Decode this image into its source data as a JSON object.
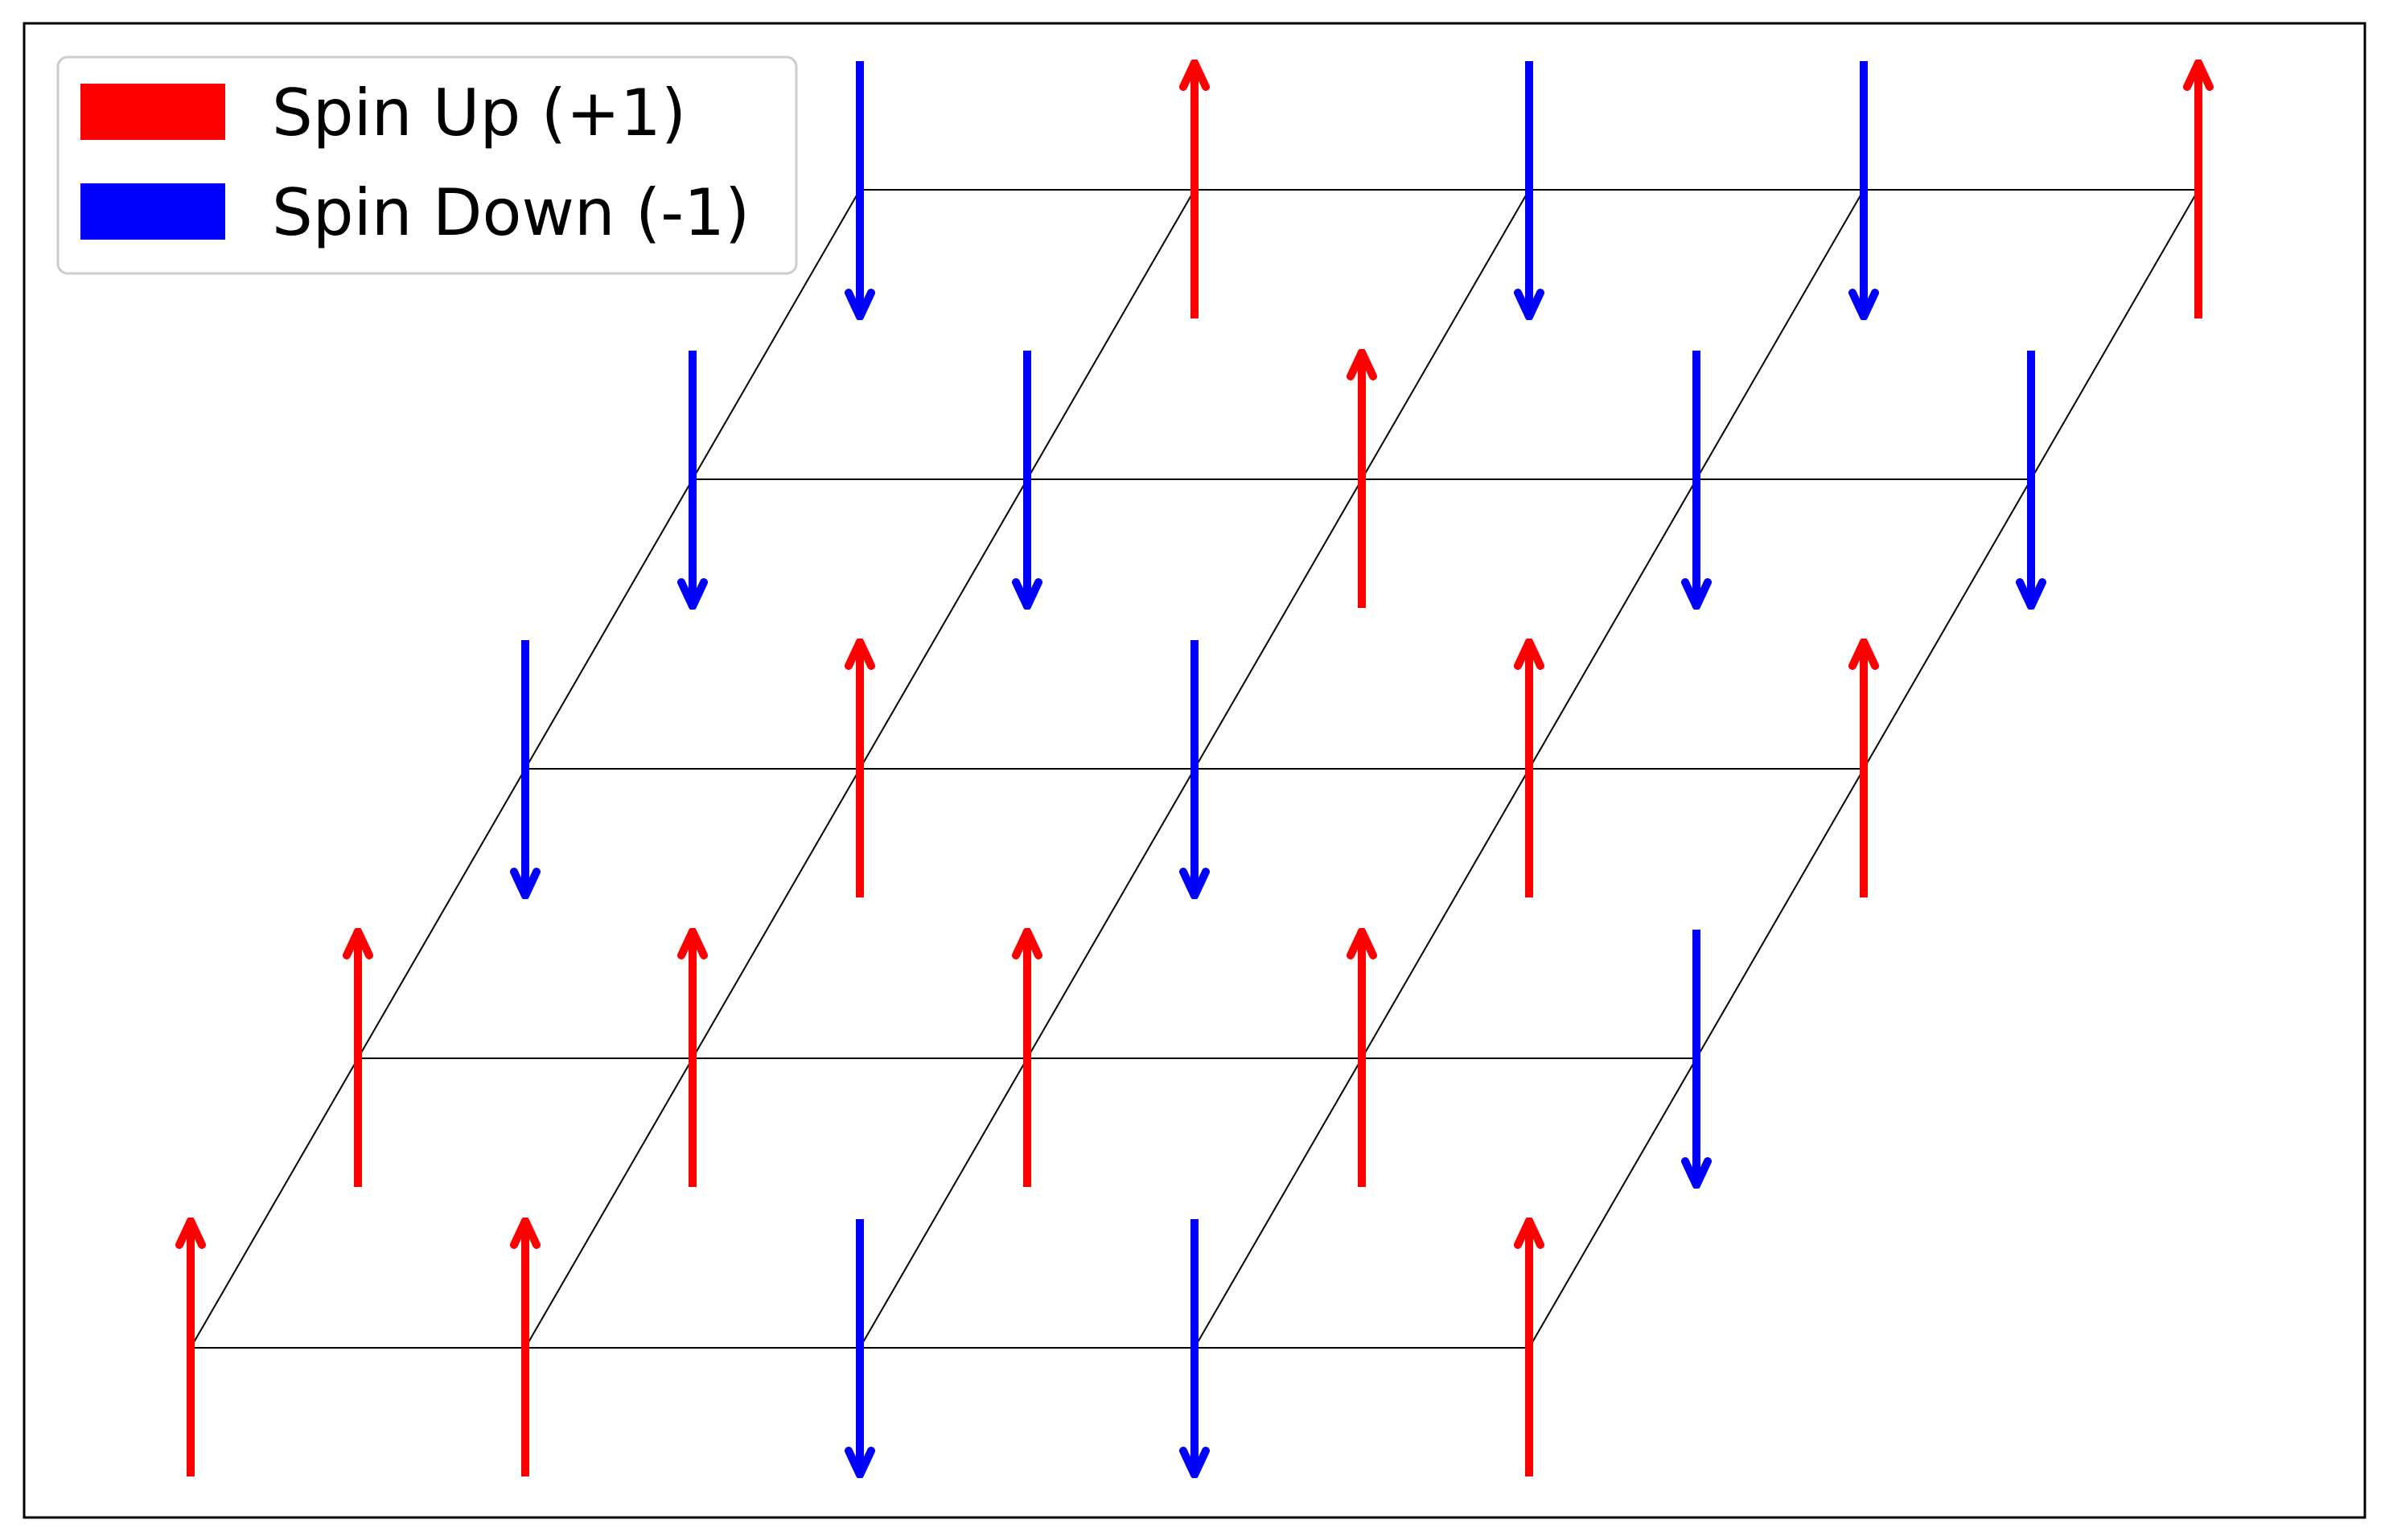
{
  "legend": {
    "up_label": "Spin Up (+1)",
    "down_label": "Spin Down (-1)"
  },
  "colors": {
    "up": "#ff0000",
    "down": "#0000ff",
    "grid": "#000000",
    "frame": "#000000"
  },
  "lattice": {
    "rows": 5,
    "cols": 5,
    "spins": [
      [
        1,
        1,
        -1,
        -1,
        1
      ],
      [
        1,
        1,
        1,
        1,
        -1
      ],
      [
        -1,
        1,
        -1,
        1,
        1
      ],
      [
        -1,
        -1,
        1,
        -1,
        -1
      ],
      [
        -1,
        1,
        -1,
        -1,
        1
      ]
    ]
  }
}
